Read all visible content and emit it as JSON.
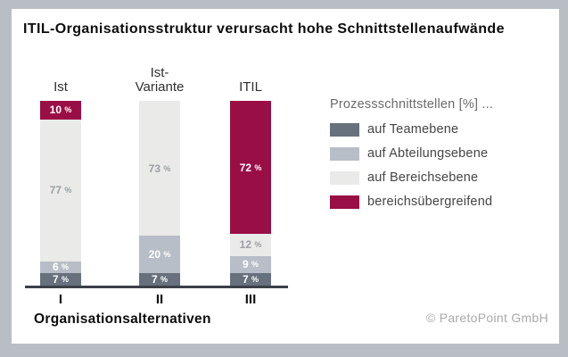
{
  "title": "ITIL-Organisationsstruktur verursacht hohe Schnittstellenaufwände",
  "legend": {
    "title": "Prozessschnittstellen [%] ..."
  },
  "xlabel": "Organisationsalternativen",
  "copyright": "© ParetoPoint GmbH",
  "colors": {
    "frame": "#b9bec5",
    "panel": "#ffffff",
    "axis": "#3c4048"
  },
  "chart_data": {
    "type": "bar",
    "stacked": true,
    "title": "ITIL-Organisationsstruktur verursacht hohe Schnittstellenaufwände",
    "categories": [
      "I",
      "II",
      "III"
    ],
    "group_labels": [
      "Ist",
      "Ist-\nVariante",
      "ITIL"
    ],
    "series": [
      {
        "name": "auf Teamebene",
        "color": "#66717d",
        "label_color": "#ffffff",
        "values": [
          7,
          7,
          7
        ]
      },
      {
        "name": "auf Abteilungsebene",
        "color": "#b7bec7",
        "label_color": "#ffffff",
        "values": [
          6,
          20,
          9
        ]
      },
      {
        "name": "auf Bereichsebene",
        "color": "#eaeae8",
        "label_color": "#9aa0a5",
        "values": [
          77,
          73,
          12
        ]
      },
      {
        "name": "bereichsübergreifend",
        "color": "#9a0e46",
        "label_color": "#ffffff",
        "values": [
          10,
          0,
          72
        ]
      }
    ],
    "value_suffix": "%",
    "legend_title": "Prozessschnittstellen [%] ...",
    "xlabel": "Organisationsalternativen",
    "ylim": [
      0,
      100
    ],
    "grid": false,
    "legend_position": "right"
  }
}
